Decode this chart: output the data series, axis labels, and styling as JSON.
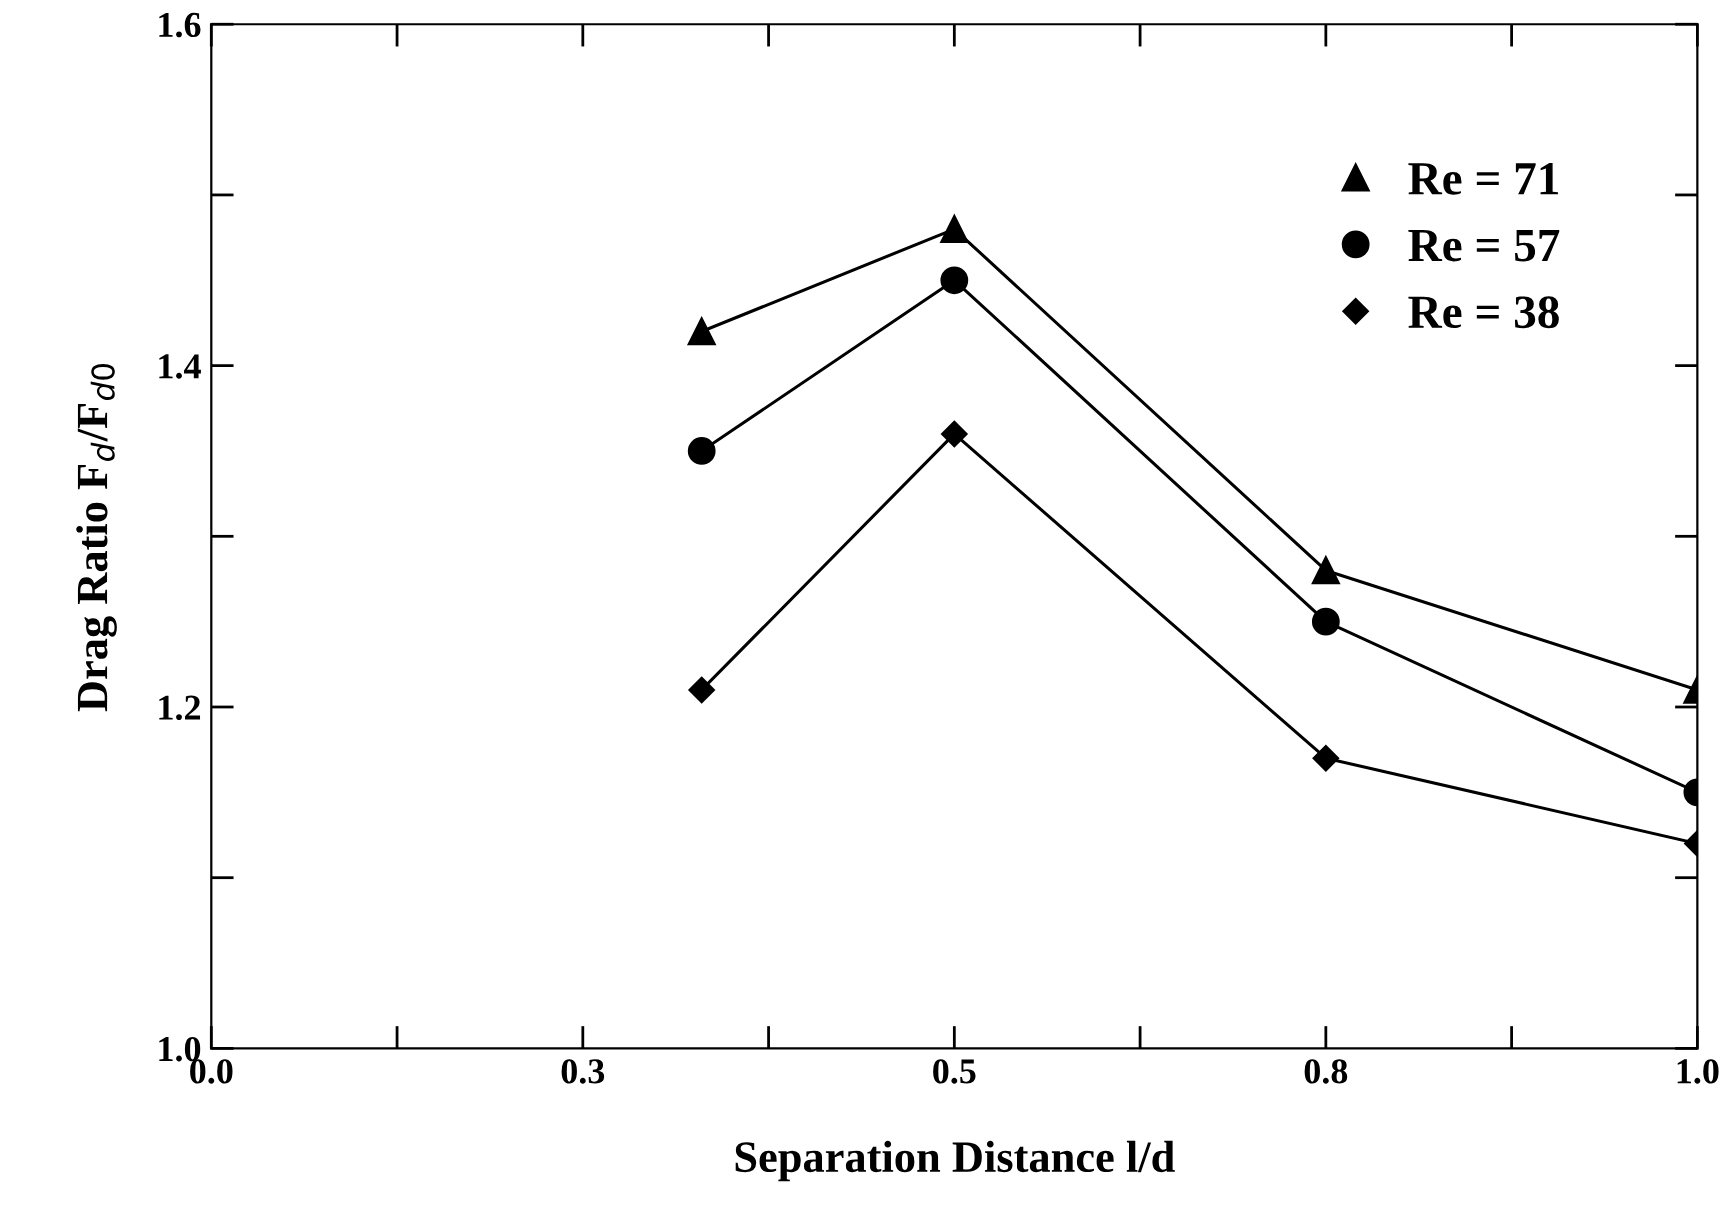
{
  "chart_data": {
    "type": "line",
    "xlabel": "Separation Distance l/d",
    "ylabel": "Drag Ratio F$_{d}$/F$_{d0}$",
    "x": [
      0.33,
      0.5,
      0.75,
      1.0
    ],
    "series": [
      {
        "name": "Re = 71",
        "color": "#000000",
        "marker": "triangle",
        "values": [
          1.42,
          1.48,
          1.28,
          1.21
        ]
      },
      {
        "name": "Re = 57",
        "color": "#000000",
        "marker": "circle",
        "values": [
          1.35,
          1.45,
          1.25,
          1.15
        ]
      },
      {
        "name": "Re = 38",
        "color": "#000000",
        "marker": "diamond",
        "values": [
          1.21,
          1.36,
          1.17,
          1.12
        ]
      }
    ],
    "xlim": [
      0.0,
      1.0
    ],
    "xticks": [
      {
        "value": 0.0,
        "label": "0.0"
      },
      {
        "value": 0.125,
        "label": null
      },
      {
        "value": 0.25,
        "label": "0.3"
      },
      {
        "value": 0.375,
        "label": null
      },
      {
        "value": 0.5,
        "label": "0.5"
      },
      {
        "value": 0.625,
        "label": null
      },
      {
        "value": 0.75,
        "label": "0.8"
      },
      {
        "value": 0.875,
        "label": null
      },
      {
        "value": 1.0,
        "label": "1.0"
      }
    ],
    "ylim": [
      1.0,
      1.6
    ],
    "yticks": [
      {
        "value": 1.0,
        "label": "1.0"
      },
      {
        "value": 1.1,
        "label": null
      },
      {
        "value": 1.2,
        "label": "1.2"
      },
      {
        "value": 1.3,
        "label": null
      },
      {
        "value": 1.4,
        "label": "1.4"
      },
      {
        "value": 1.5,
        "label": null
      },
      {
        "value": 1.6,
        "label": "1.6"
      }
    ],
    "grid": false,
    "legend": "top right",
    "line_style": "solid"
  }
}
